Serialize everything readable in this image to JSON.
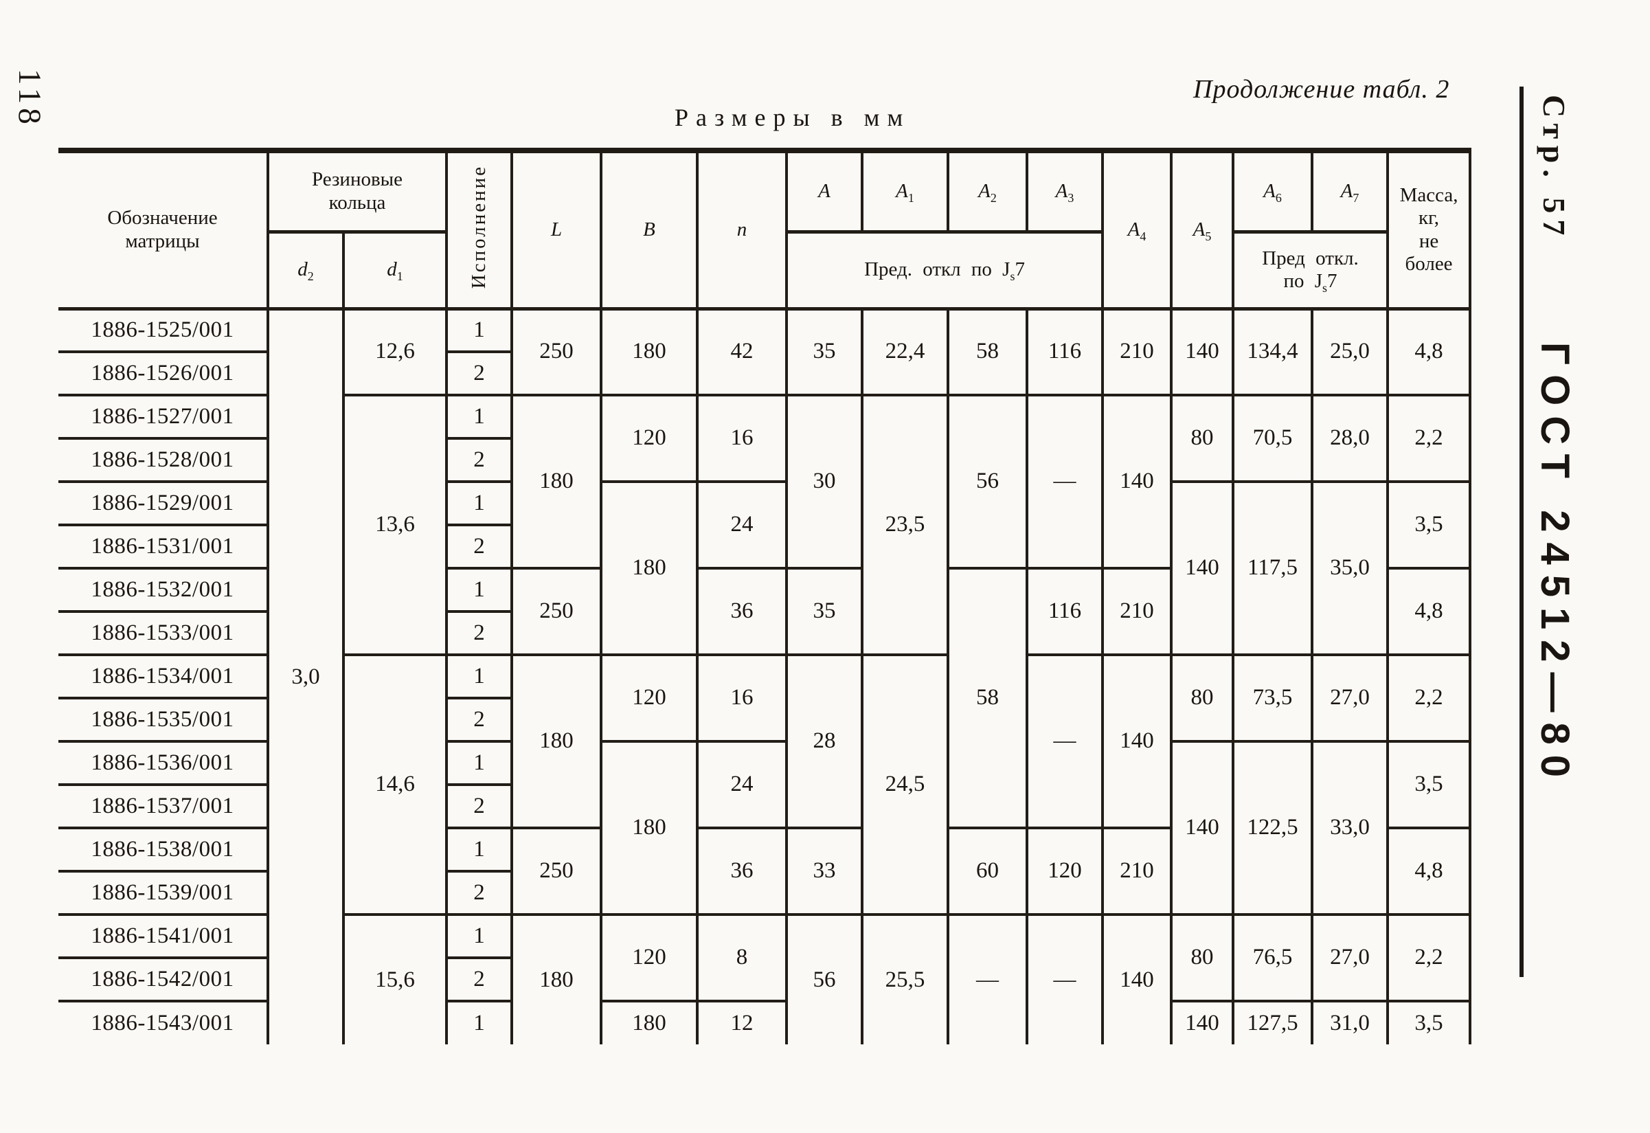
{
  "page": {
    "left_margin_page_number": "118",
    "size_caption": "Размеры в мм",
    "continuation_caption": "Продолжение табл. 2",
    "right_margin": {
      "page_label": "Стр. 57",
      "standard_label": "ГОСТ 24512—80"
    }
  },
  "table": {
    "col_keys": [
      "designation",
      "d2",
      "d1",
      "version",
      "L",
      "B",
      "n",
      "A",
      "A1",
      "A2",
      "A3",
      "A4",
      "A5",
      "A6",
      "A7",
      "mass"
    ],
    "header": {
      "designation": "Обозначение\nматрицы",
      "rubber_rings": "Резиновые\nкольца",
      "d2": {
        "base": "d",
        "sub": "2"
      },
      "d1": {
        "base": "d",
        "sub": "1"
      },
      "version": "Исполнение",
      "L": "L",
      "B": "B",
      "n": "n",
      "A": {
        "base": "A",
        "sub": ""
      },
      "A1": {
        "base": "A",
        "sub": "1"
      },
      "A2": {
        "base": "A",
        "sub": "2"
      },
      "A3": {
        "base": "A",
        "sub": "3"
      },
      "A4": {
        "base": "A",
        "sub": "4"
      },
      "A5": {
        "base": "A",
        "sub": "5"
      },
      "A6": {
        "base": "A",
        "sub": "6"
      },
      "A7": {
        "base": "A",
        "sub": "7"
      },
      "tol_a": {
        "pre": "Пред. откл по J",
        "sub": "s",
        "post": "7"
      },
      "tol_b": {
        "pre": "Пред откл.\nпо J",
        "sub": "s",
        "post": "7"
      },
      "mass": "Масса,\nкг,\nне\nболее"
    },
    "rows": [
      {
        "cells": [
          {
            "c": 0,
            "v": "1886-1525/001"
          },
          {
            "c": 1,
            "v": "3,0",
            "rs": 17
          },
          {
            "c": 2,
            "v": "12,6",
            "rs": 2
          },
          {
            "c": 3,
            "v": "1"
          },
          {
            "c": 4,
            "v": "250",
            "rs": 2
          },
          {
            "c": 5,
            "v": "180",
            "rs": 2
          },
          {
            "c": 6,
            "v": "42",
            "rs": 2
          },
          {
            "c": 7,
            "v": "35",
            "rs": 2
          },
          {
            "c": 8,
            "v": "22,4",
            "rs": 2
          },
          {
            "c": 9,
            "v": "58",
            "rs": 2
          },
          {
            "c": 10,
            "v": "116",
            "rs": 2
          },
          {
            "c": 11,
            "v": "210",
            "rs": 2
          },
          {
            "c": 12,
            "v": "140",
            "rs": 2
          },
          {
            "c": 13,
            "v": "134,4",
            "rs": 2
          },
          {
            "c": 14,
            "v": "25,0",
            "rs": 2
          },
          {
            "c": 15,
            "v": "4,8",
            "rs": 2
          }
        ]
      },
      {
        "cells": [
          {
            "c": 0,
            "v": "1886-1526/001"
          },
          {
            "c": 3,
            "v": "2"
          }
        ]
      },
      {
        "cells": [
          {
            "c": 0,
            "v": "1886-1527/001"
          },
          {
            "c": 2,
            "v": "13,6",
            "rs": 6
          },
          {
            "c": 3,
            "v": "1"
          },
          {
            "c": 4,
            "v": "180",
            "rs": 4
          },
          {
            "c": 5,
            "v": "120",
            "rs": 2
          },
          {
            "c": 6,
            "v": "16",
            "rs": 2
          },
          {
            "c": 7,
            "v": "30",
            "rs": 4
          },
          {
            "c": 8,
            "v": "23,5",
            "rs": 6
          },
          {
            "c": 9,
            "v": "56",
            "rs": 4
          },
          {
            "c": 10,
            "v": "—",
            "rs": 4
          },
          {
            "c": 11,
            "v": "140",
            "rs": 4
          },
          {
            "c": 12,
            "v": "80",
            "rs": 2
          },
          {
            "c": 13,
            "v": "70,5",
            "rs": 2
          },
          {
            "c": 14,
            "v": "28,0",
            "rs": 2
          },
          {
            "c": 15,
            "v": "2,2",
            "rs": 2
          }
        ]
      },
      {
        "cells": [
          {
            "c": 0,
            "v": "1886-1528/001"
          },
          {
            "c": 3,
            "v": "2"
          }
        ]
      },
      {
        "cells": [
          {
            "c": 0,
            "v": "1886-1529/001"
          },
          {
            "c": 3,
            "v": "1"
          },
          {
            "c": 5,
            "v": "180",
            "rs": 4
          },
          {
            "c": 6,
            "v": "24",
            "rs": 2
          },
          {
            "c": 12,
            "v": "140",
            "rs": 4
          },
          {
            "c": 13,
            "v": "117,5",
            "rs": 4
          },
          {
            "c": 14,
            "v": "35,0",
            "rs": 4
          },
          {
            "c": 15,
            "v": "3,5",
            "rs": 2
          }
        ]
      },
      {
        "cells": [
          {
            "c": 0,
            "v": "1886-1531/001"
          },
          {
            "c": 3,
            "v": "2"
          }
        ]
      },
      {
        "cells": [
          {
            "c": 0,
            "v": "1886-1532/001"
          },
          {
            "c": 3,
            "v": "1"
          },
          {
            "c": 4,
            "v": "250",
            "rs": 2
          },
          {
            "c": 6,
            "v": "36",
            "rs": 2
          },
          {
            "c": 7,
            "v": "35",
            "rs": 2
          },
          {
            "c": 9,
            "v": "58",
            "rs": 6
          },
          {
            "c": 10,
            "v": "116",
            "rs": 2
          },
          {
            "c": 11,
            "v": "210",
            "rs": 2
          },
          {
            "c": 15,
            "v": "4,8",
            "rs": 2
          }
        ]
      },
      {
        "cells": [
          {
            "c": 0,
            "v": "1886-1533/001"
          },
          {
            "c": 3,
            "v": "2"
          }
        ]
      },
      {
        "cells": [
          {
            "c": 0,
            "v": "1886-1534/001"
          },
          {
            "c": 2,
            "v": "14,6",
            "rs": 6
          },
          {
            "c": 3,
            "v": "1"
          },
          {
            "c": 4,
            "v": "180",
            "rs": 4
          },
          {
            "c": 5,
            "v": "120",
            "rs": 2
          },
          {
            "c": 6,
            "v": "16",
            "rs": 2
          },
          {
            "c": 7,
            "v": "28",
            "rs": 4
          },
          {
            "c": 8,
            "v": "24,5",
            "rs": 6
          },
          {
            "c": 10,
            "v": "—",
            "rs": 4
          },
          {
            "c": 11,
            "v": "140",
            "rs": 4
          },
          {
            "c": 12,
            "v": "80",
            "rs": 2
          },
          {
            "c": 13,
            "v": "73,5",
            "rs": 2
          },
          {
            "c": 14,
            "v": "27,0",
            "rs": 2
          },
          {
            "c": 15,
            "v": "2,2",
            "rs": 2
          }
        ]
      },
      {
        "cells": [
          {
            "c": 0,
            "v": "1886-1535/001"
          },
          {
            "c": 3,
            "v": "2"
          }
        ]
      },
      {
        "cells": [
          {
            "c": 0,
            "v": "1886-1536/001"
          },
          {
            "c": 3,
            "v": "1"
          },
          {
            "c": 5,
            "v": "180",
            "rs": 4
          },
          {
            "c": 6,
            "v": "24",
            "rs": 2
          },
          {
            "c": 12,
            "v": "140",
            "rs": 4
          },
          {
            "c": 13,
            "v": "122,5",
            "rs": 4
          },
          {
            "c": 14,
            "v": "33,0",
            "rs": 4
          },
          {
            "c": 15,
            "v": "3,5",
            "rs": 2
          }
        ]
      },
      {
        "cells": [
          {
            "c": 0,
            "v": "1886-1537/001"
          },
          {
            "c": 3,
            "v": "2"
          }
        ]
      },
      {
        "cells": [
          {
            "c": 0,
            "v": "1886-1538/001"
          },
          {
            "c": 3,
            "v": "1"
          },
          {
            "c": 4,
            "v": "250",
            "rs": 2
          },
          {
            "c": 6,
            "v": "36",
            "rs": 2
          },
          {
            "c": 7,
            "v": "33",
            "rs": 2
          },
          {
            "c": 9,
            "v": "60",
            "rs": 2
          },
          {
            "c": 10,
            "v": "120",
            "rs": 2
          },
          {
            "c": 11,
            "v": "210",
            "rs": 2
          },
          {
            "c": 15,
            "v": "4,8",
            "rs": 2
          }
        ]
      },
      {
        "cells": [
          {
            "c": 0,
            "v": "1886-1539/001"
          },
          {
            "c": 3,
            "v": "2"
          }
        ]
      },
      {
        "cells": [
          {
            "c": 0,
            "v": "1886-1541/001"
          },
          {
            "c": 2,
            "v": "15,6",
            "rs": 3
          },
          {
            "c": 3,
            "v": "1"
          },
          {
            "c": 4,
            "v": "180",
            "rs": 3
          },
          {
            "c": 5,
            "v": "120",
            "rs": 2
          },
          {
            "c": 6,
            "v": "8",
            "rs": 2
          },
          {
            "c": 7,
            "v": "56",
            "rs": 3
          },
          {
            "c": 8,
            "v": "25,5",
            "rs": 3
          },
          {
            "c": 9,
            "v": "—",
            "rs": 3
          },
          {
            "c": 10,
            "v": "—",
            "rs": 3
          },
          {
            "c": 11,
            "v": "140",
            "rs": 3
          },
          {
            "c": 12,
            "v": "80",
            "rs": 2
          },
          {
            "c": 13,
            "v": "76,5",
            "rs": 2
          },
          {
            "c": 14,
            "v": "27,0",
            "rs": 2
          },
          {
            "c": 15,
            "v": "2,2",
            "rs": 2
          }
        ]
      },
      {
        "cells": [
          {
            "c": 0,
            "v": "1886-1542/001"
          },
          {
            "c": 3,
            "v": "2"
          }
        ]
      },
      {
        "cells": [
          {
            "c": 0,
            "v": "1886-1543/001"
          },
          {
            "c": 3,
            "v": "1"
          },
          {
            "c": 5,
            "v": "180"
          },
          {
            "c": 6,
            "v": "12"
          },
          {
            "c": 12,
            "v": "140"
          },
          {
            "c": 13,
            "v": "127,5"
          },
          {
            "c": 14,
            "v": "31,0"
          },
          {
            "c": 15,
            "v": "3,5"
          }
        ]
      }
    ]
  }
}
